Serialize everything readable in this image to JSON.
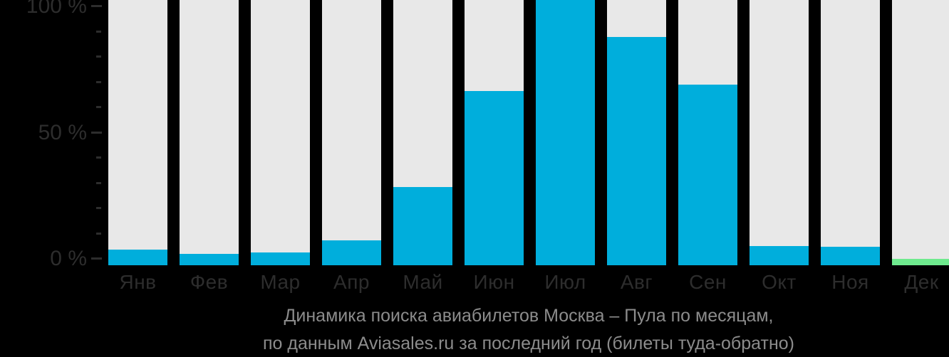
{
  "caption": {
    "line1": "Динамика поиска авиабилетов Москва – Пула по месяцам,",
    "line2": "по данным Aviasales.ru за последний год (билеты туда-обратно)"
  },
  "y_axis": {
    "ticks": [
      {
        "pct": 100,
        "label": "100 %"
      },
      {
        "pct": 90
      },
      {
        "pct": 80
      },
      {
        "pct": 70
      },
      {
        "pct": 60
      },
      {
        "pct": 50,
        "label": "50 %"
      },
      {
        "pct": 40
      },
      {
        "pct": 30
      },
      {
        "pct": 20
      },
      {
        "pct": 10
      },
      {
        "pct": 0,
        "label": "0 %"
      }
    ]
  },
  "chart_data": {
    "type": "bar",
    "title": "Динамика поиска авиабилетов Москва – Пула по месяцам, по данным Aviasales.ru за последний год (билеты туда-обратно)",
    "categories": [
      "Янв",
      "Фев",
      "Мар",
      "Апр",
      "Май",
      "Июн",
      "Июл",
      "Авг",
      "Сен",
      "Окт",
      "Ноя",
      "Дек"
    ],
    "values": [
      6,
      4.5,
      5,
      9.5,
      30,
      67,
      100,
      88,
      69.5,
      7.5,
      7,
      2.5
    ],
    "unit": "%",
    "xlabel": "",
    "ylabel": "",
    "ylim": [
      0,
      100
    ],
    "grid": false,
    "legend": "none",
    "highlight_index": 11,
    "highlight_meaning": "current-month"
  },
  "colors": {
    "background": "#000000",
    "bar": "#00AEDC",
    "bar_highlight": "#6EEA8E",
    "track": "#E8E8E8",
    "axis_text": "#2D2D2D",
    "tick_mark": "#2D2D2D",
    "caption_text": "#8C8C8C"
  }
}
